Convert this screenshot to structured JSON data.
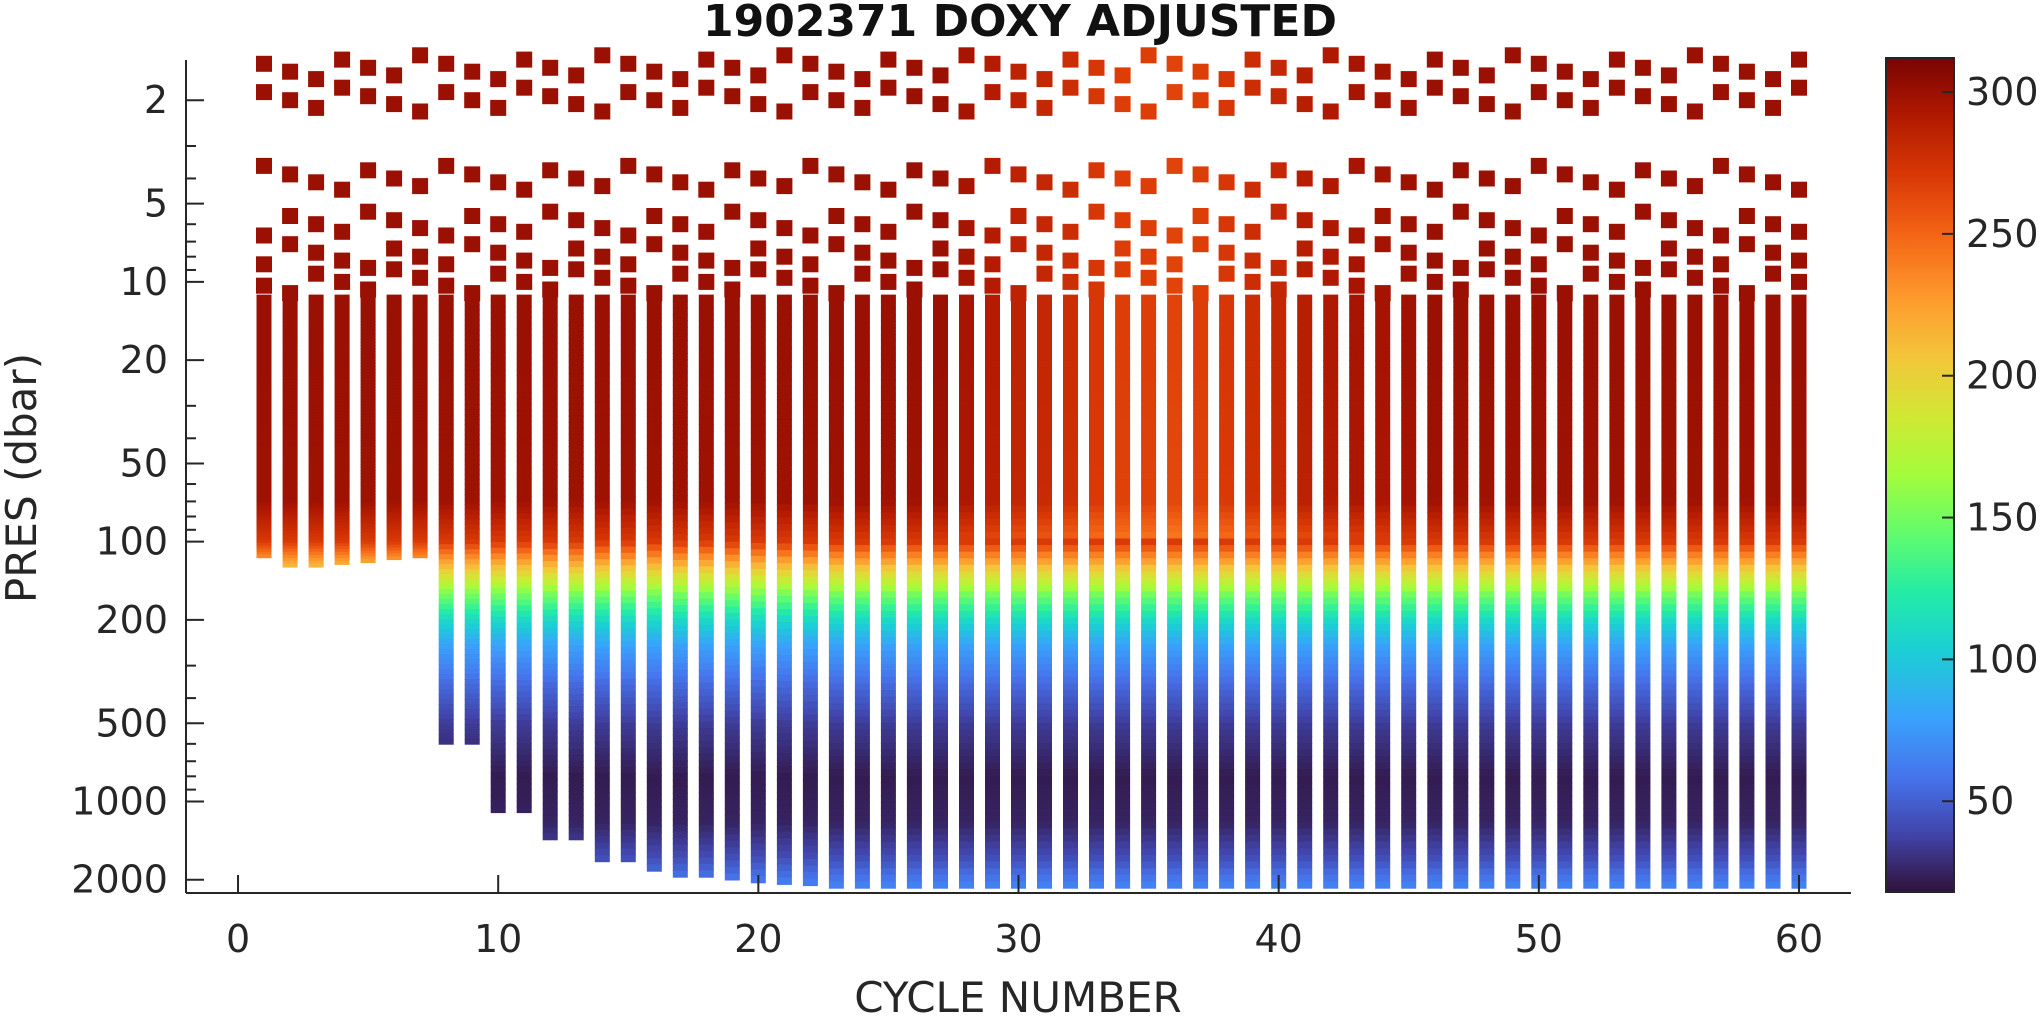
{
  "chart_data": {
    "type": "heatmap",
    "title": "1902371  DOXY ADJUSTED",
    "xlabel": "CYCLE NUMBER",
    "ylabel": "PRES (dbar)",
    "x_ticks": [
      "0",
      "10",
      "20",
      "30",
      "40",
      "50",
      "60"
    ],
    "y_ticks": [
      "2",
      "5",
      "10",
      "20",
      "50",
      "100",
      "200",
      "500",
      "1000",
      "2000"
    ],
    "xlim": [
      -2,
      62
    ],
    "ylim": [
      2250,
      1.4
    ],
    "y_scale": "log",
    "y_reversed": true,
    "colorbar": {
      "ticks": [
        "50",
        "100",
        "150",
        "200",
        "250",
        "300"
      ],
      "range": [
        18,
        312
      ],
      "colormap": "turbo"
    },
    "cycles": {
      "first": 1,
      "last": 60,
      "max_depth_by_cycle": [
        115,
        125,
        125,
        122,
        120,
        117,
        115,
        600,
        600,
        1100,
        1100,
        1400,
        1400,
        1700,
        1700,
        1850,
        1950,
        1950,
        2000,
        2050,
        2080,
        2100,
        2150,
        2150,
        2150,
        2150,
        2150,
        2150,
        2150,
        2150,
        2150,
        2150,
        2150,
        2150,
        2150,
        2150,
        2150,
        2150,
        2150,
        2150,
        2150,
        2150,
        2150,
        2150,
        2150,
        2150,
        2150,
        2150,
        2150,
        2150,
        2150,
        2150,
        2150,
        2150,
        2150,
        2150,
        2150,
        2150,
        2150,
        2150
      ],
      "surface_oxygen_by_cycle": [
        300,
        300,
        300,
        300,
        300,
        300,
        300,
        300,
        300,
        300,
        300,
        300,
        300,
        300,
        300,
        300,
        300,
        300,
        300,
        300,
        300,
        300,
        300,
        300,
        300,
        300,
        300,
        295,
        290,
        285,
        282,
        278,
        272,
        268,
        268,
        265,
        268,
        272,
        278,
        282,
        288,
        292,
        295,
        296,
        298,
        300,
        300,
        300,
        300,
        300,
        300,
        300,
        300,
        300,
        300,
        300,
        300,
        300,
        300,
        300
      ],
      "discrete_levels_dbar": [
        1.5,
        2,
        4,
        6,
        8,
        10
      ]
    },
    "profile": [
      {
        "pres": 1.5,
        "doxy": 300
      },
      {
        "pres": 20,
        "doxy": 300
      },
      {
        "pres": 70,
        "doxy": 298
      },
      {
        "pres": 100,
        "doxy": 270
      },
      {
        "pres": 130,
        "doxy": 200
      },
      {
        "pres": 160,
        "doxy": 150
      },
      {
        "pres": 200,
        "doxy": 110
      },
      {
        "pres": 250,
        "doxy": 80
      },
      {
        "pres": 350,
        "doxy": 55
      },
      {
        "pres": 500,
        "doxy": 35
      },
      {
        "pres": 800,
        "doxy": 22
      },
      {
        "pres": 1200,
        "doxy": 25
      },
      {
        "pres": 1600,
        "doxy": 40
      },
      {
        "pres": 2000,
        "doxy": 60
      },
      {
        "pres": 2200,
        "doxy": 70
      }
    ]
  }
}
